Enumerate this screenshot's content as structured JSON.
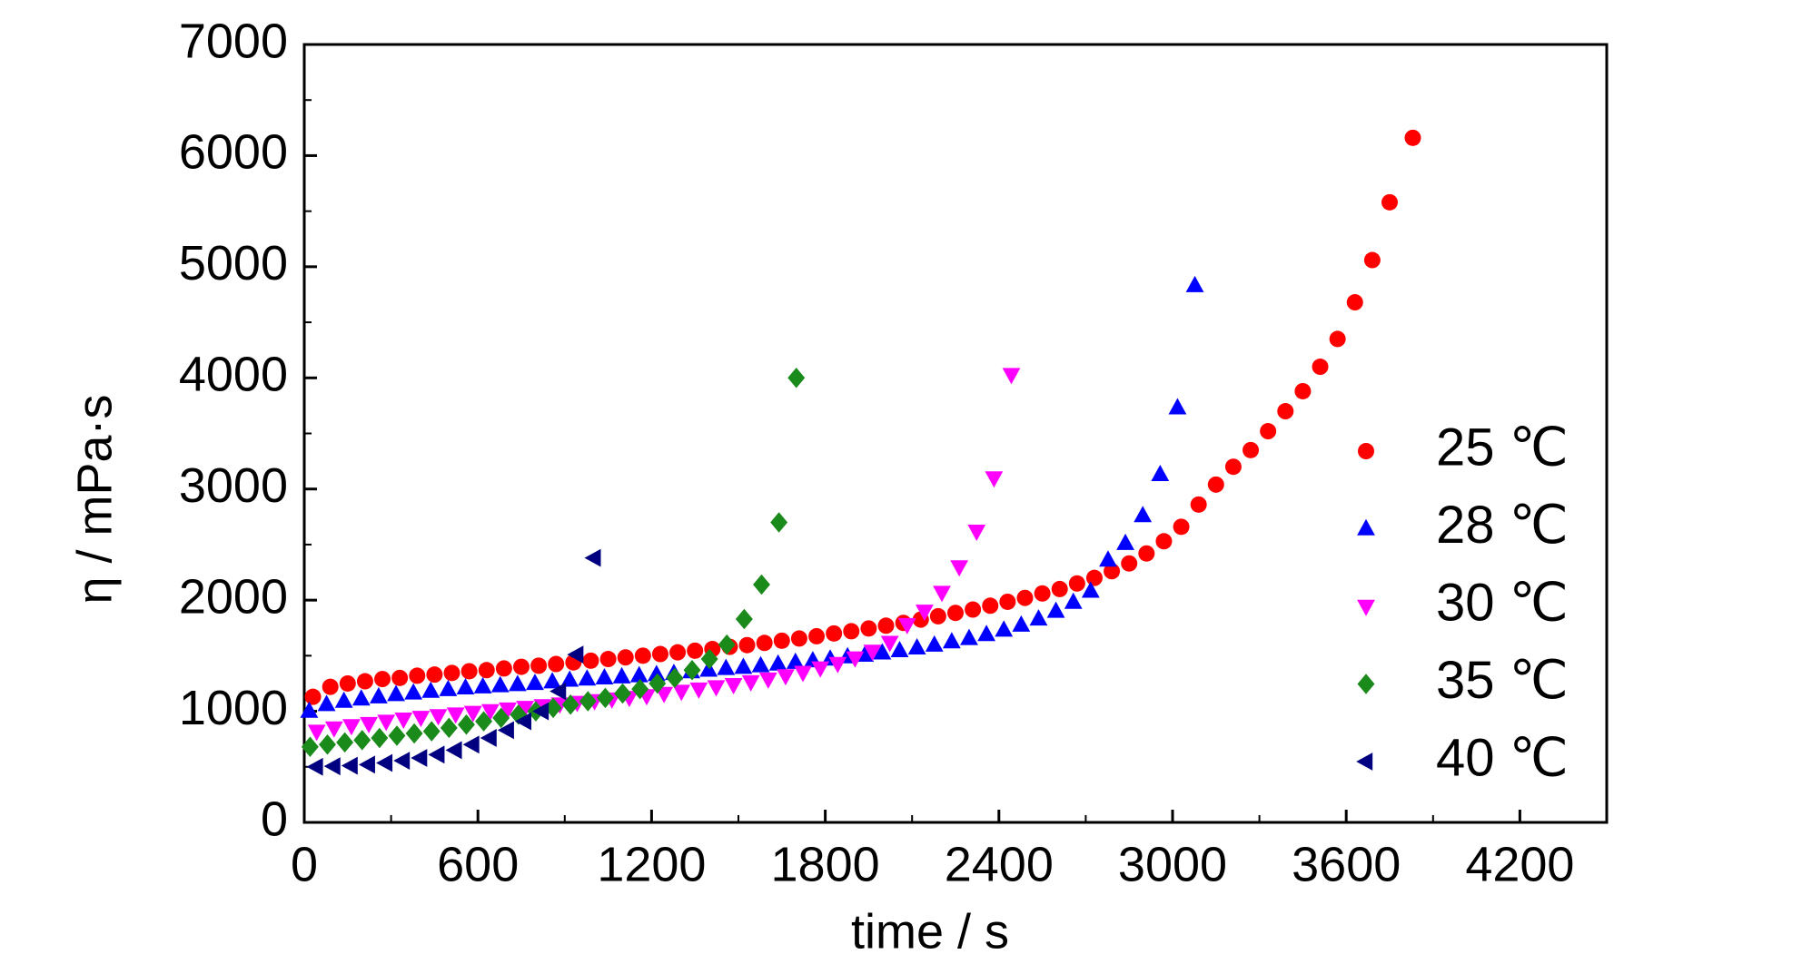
{
  "chart_data": {
    "type": "scatter",
    "xlabel": "time / s",
    "ylabel": "η / mPa·s",
    "xlim": [
      0,
      4500
    ],
    "ylim": [
      0,
      7000
    ],
    "xticks": [
      0,
      600,
      1200,
      1800,
      2400,
      3000,
      3600,
      4200
    ],
    "yticks": [
      0,
      1000,
      2000,
      3000,
      4000,
      5000,
      6000,
      7000
    ],
    "legend": "right",
    "series": [
      {
        "name": "25 ℃",
        "color": "#ff0000",
        "marker": "circle",
        "x": [
          30,
          90,
          150,
          210,
          270,
          330,
          390,
          450,
          510,
          570,
          630,
          690,
          750,
          810,
          870,
          930,
          990,
          1050,
          1110,
          1170,
          1230,
          1290,
          1350,
          1410,
          1470,
          1530,
          1590,
          1650,
          1710,
          1770,
          1830,
          1890,
          1950,
          2010,
          2070,
          2130,
          2190,
          2250,
          2310,
          2370,
          2430,
          2490,
          2550,
          2610,
          2670,
          2730,
          2790,
          2850,
          2910,
          2970,
          3030,
          3090,
          3150,
          3210,
          3270,
          3330,
          3390,
          3450,
          3510,
          3570,
          3630,
          3690,
          3750,
          3830
        ],
        "values": [
          1130,
          1220,
          1250,
          1270,
          1290,
          1300,
          1320,
          1330,
          1345,
          1360,
          1370,
          1385,
          1400,
          1410,
          1425,
          1440,
          1455,
          1470,
          1485,
          1500,
          1515,
          1530,
          1545,
          1560,
          1580,
          1595,
          1615,
          1635,
          1655,
          1675,
          1700,
          1720,
          1745,
          1770,
          1795,
          1825,
          1855,
          1885,
          1915,
          1950,
          1985,
          2020,
          2060,
          2100,
          2150,
          2200,
          2260,
          2330,
          2420,
          2530,
          2660,
          2860,
          3040,
          3200,
          3350,
          3520,
          3700,
          3880,
          4100,
          4350,
          4680,
          5060,
          5580,
          6160
        ]
      },
      {
        "name": "28 ℃",
        "color": "#0000ff",
        "marker": "triangle-up",
        "x": [
          17,
          77,
          137,
          197,
          257,
          317,
          377,
          437,
          497,
          557,
          617,
          677,
          737,
          797,
          857,
          917,
          977,
          1037,
          1097,
          1157,
          1217,
          1277,
          1337,
          1397,
          1457,
          1517,
          1577,
          1637,
          1697,
          1757,
          1817,
          1877,
          1937,
          1997,
          2057,
          2117,
          2177,
          2237,
          2297,
          2357,
          2417,
          2477,
          2537,
          2597,
          2657,
          2717,
          2777,
          2837,
          2897,
          2957,
          3017,
          3077
        ],
        "values": [
          1000,
          1060,
          1090,
          1110,
          1130,
          1150,
          1165,
          1180,
          1195,
          1210,
          1220,
          1230,
          1240,
          1250,
          1265,
          1280,
          1290,
          1300,
          1310,
          1320,
          1330,
          1340,
          1355,
          1370,
          1385,
          1395,
          1410,
          1425,
          1440,
          1455,
          1470,
          1490,
          1505,
          1525,
          1545,
          1570,
          1595,
          1625,
          1655,
          1690,
          1730,
          1775,
          1830,
          1900,
          1980,
          2080,
          2360,
          2510,
          2760,
          3130,
          3730,
          4830
        ]
      },
      {
        "name": "30 ℃",
        "color": "#ff00ff",
        "marker": "triangle-down",
        "x": [
          43,
          103,
          163,
          223,
          283,
          343,
          403,
          463,
          523,
          583,
          643,
          703,
          763,
          823,
          883,
          943,
          1003,
          1063,
          1123,
          1183,
          1243,
          1303,
          1363,
          1423,
          1483,
          1543,
          1603,
          1663,
          1723,
          1783,
          1843,
          1903,
          1963,
          2023,
          2083,
          2143,
          2203,
          2263,
          2323,
          2383,
          2443
        ],
        "values": [
          820,
          850,
          870,
          890,
          910,
          930,
          945,
          960,
          975,
          990,
          1005,
          1020,
          1035,
          1050,
          1065,
          1080,
          1095,
          1110,
          1125,
          1140,
          1160,
          1180,
          1200,
          1220,
          1240,
          1265,
          1290,
          1320,
          1350,
          1390,
          1430,
          1480,
          1540,
          1620,
          1780,
          1900,
          2070,
          2300,
          2620,
          3100,
          4030
        ]
      },
      {
        "name": "35 ℃",
        "color": "#1a8a1a",
        "marker": "diamond",
        "x": [
          20,
          80,
          140,
          200,
          260,
          320,
          380,
          440,
          500,
          560,
          620,
          680,
          740,
          800,
          860,
          920,
          980,
          1040,
          1100,
          1160,
          1220,
          1280,
          1340,
          1400,
          1460,
          1520,
          1580,
          1640,
          1700
        ],
        "values": [
          680,
          700,
          720,
          740,
          760,
          780,
          800,
          820,
          850,
          880,
          910,
          940,
          970,
          1000,
          1030,
          1060,
          1090,
          1120,
          1160,
          1200,
          1250,
          1300,
          1370,
          1470,
          1600,
          1830,
          2140,
          2700,
          4000
        ]
      },
      {
        "name": "40 ℃",
        "color": "#000080",
        "marker": "triangle-left",
        "x": [
          42,
          102,
          162,
          222,
          282,
          342,
          402,
          462,
          522,
          582,
          642,
          702,
          762,
          822,
          882,
          942,
          1002
        ],
        "values": [
          500,
          505,
          510,
          520,
          535,
          555,
          580,
          610,
          650,
          700,
          760,
          830,
          910,
          1000,
          1180,
          1510,
          2380
        ]
      }
    ]
  }
}
